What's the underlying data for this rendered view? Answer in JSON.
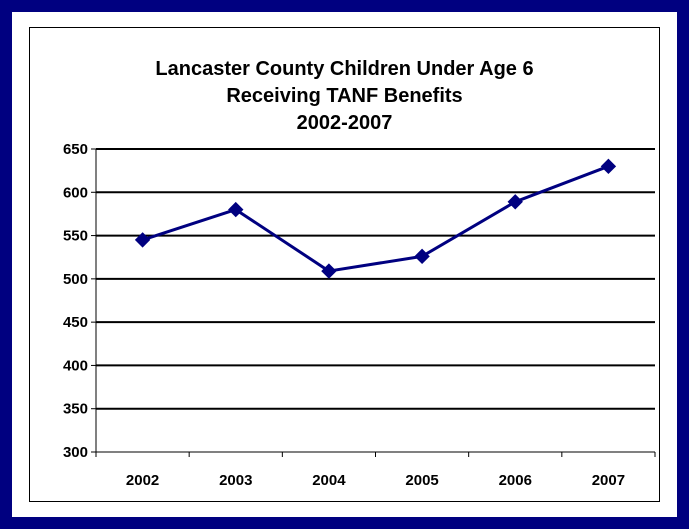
{
  "chart_data": {
    "type": "line",
    "title_lines": [
      "Lancaster County Children Under Age 6",
      "Receiving TANF Benefits",
      "2002-2007"
    ],
    "xlabel": "",
    "ylabel": "",
    "categories": [
      "2002",
      "2003",
      "2004",
      "2005",
      "2006",
      "2007"
    ],
    "series": [
      {
        "values": [
          545,
          580,
          509,
          526,
          589,
          630
        ]
      }
    ],
    "ylim": [
      300,
      650
    ],
    "yticks": [
      650,
      600,
      550,
      500,
      450,
      400,
      350,
      300
    ],
    "grid": true,
    "legend": "none",
    "colors": {
      "line": "#000080",
      "marker": "#000080",
      "border": "#000080",
      "grid": "#000000"
    }
  }
}
